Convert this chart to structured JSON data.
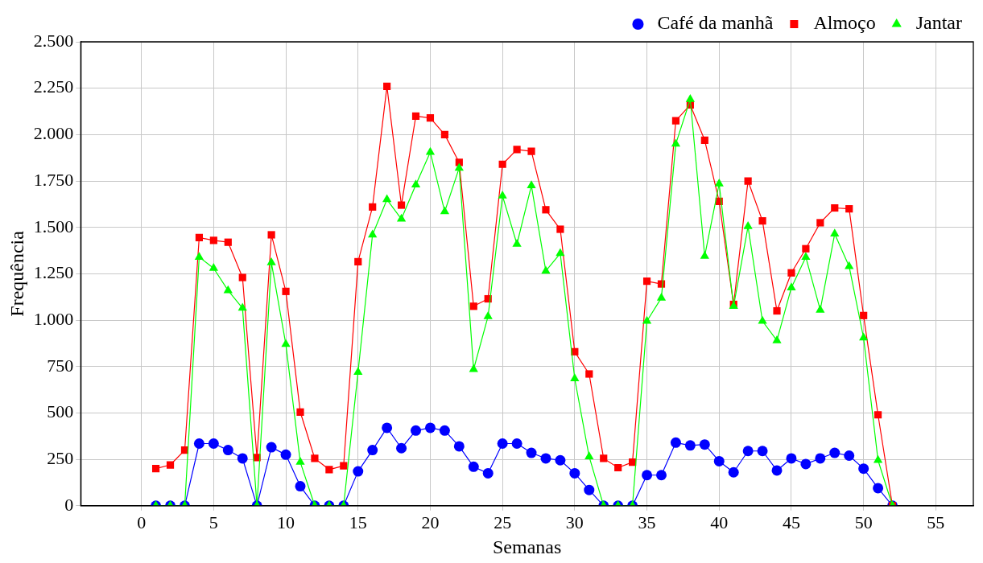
{
  "chart_data": {
    "type": "line",
    "xlabel": "Semanas",
    "ylabel": "Frequência",
    "x": [
      1,
      2,
      3,
      4,
      5,
      6,
      7,
      8,
      9,
      10,
      11,
      12,
      13,
      14,
      15,
      16,
      17,
      18,
      19,
      20,
      21,
      22,
      23,
      24,
      25,
      26,
      27,
      28,
      29,
      30,
      31,
      32,
      33,
      34,
      35,
      36,
      37,
      38,
      39,
      40,
      41,
      42,
      43,
      44,
      45,
      46,
      47,
      48,
      49,
      50,
      51,
      52
    ],
    "xlim": [
      -4.2,
      57.6
    ],
    "xticks": [
      0,
      5,
      10,
      15,
      20,
      25,
      30,
      35,
      40,
      45,
      50,
      55
    ],
    "ylim": [
      0,
      2500
    ],
    "yticks": [
      0,
      250,
      500,
      750,
      {
        "value": 1000,
        "label": "1.000"
      },
      {
        "value": 1250,
        "label": "1.250"
      },
      {
        "value": 1500,
        "label": "1.500"
      },
      {
        "value": 1750,
        "label": "1.750"
      },
      {
        "value": 2000,
        "label": "2.000"
      },
      {
        "value": 2250,
        "label": "2.250"
      },
      {
        "value": 2500,
        "label": "2.500"
      }
    ],
    "grid": true,
    "legend": "top right",
    "line_style": "solid",
    "series": [
      {
        "name": "Café da manhã",
        "color": "#0000ff",
        "marker": "circle",
        "values": [
          0,
          0,
          0,
          335,
          335,
          300,
          255,
          0,
          315,
          275,
          105,
          0,
          0,
          0,
          185,
          300,
          420,
          310,
          405,
          420,
          405,
          320,
          210,
          175,
          335,
          335,
          285,
          255,
          245,
          175,
          85,
          0,
          0,
          0,
          165,
          165,
          340,
          325,
          330,
          240,
          180,
          295,
          295,
          190,
          255,
          225,
          255,
          285,
          270,
          200,
          95,
          0
        ]
      },
      {
        "name": "Almoço",
        "color": "#ff0000",
        "marker": "square",
        "values": [
          200,
          220,
          300,
          1445,
          1430,
          1420,
          1230,
          260,
          1460,
          1155,
          505,
          255,
          195,
          215,
          1315,
          1610,
          2260,
          1620,
          2100,
          2090,
          2000,
          1850,
          1075,
          1115,
          1840,
          1920,
          1910,
          1595,
          1490,
          830,
          710,
          255,
          205,
          235,
          1210,
          1195,
          2075,
          2160,
          1970,
          1640,
          1085,
          1750,
          1535,
          1050,
          1255,
          1385,
          1525,
          1605,
          1600,
          1025,
          490,
          0
        ]
      },
      {
        "name": "Jantar",
        "color": "#00ff00",
        "marker": "triangle",
        "values": [
          0,
          0,
          0,
          1340,
          1280,
          1160,
          1065,
          0,
          1310,
          870,
          235,
          0,
          0,
          0,
          720,
          1460,
          1650,
          1545,
          1730,
          1905,
          1585,
          1820,
          735,
          1020,
          1670,
          1410,
          1725,
          1265,
          1360,
          685,
          265,
          0,
          0,
          0,
          995,
          1120,
          1950,
          2190,
          1345,
          1735,
          1075,
          1505,
          995,
          890,
          1175,
          1340,
          1055,
          1465,
          1290,
          905,
          245,
          0
        ]
      }
    ]
  }
}
